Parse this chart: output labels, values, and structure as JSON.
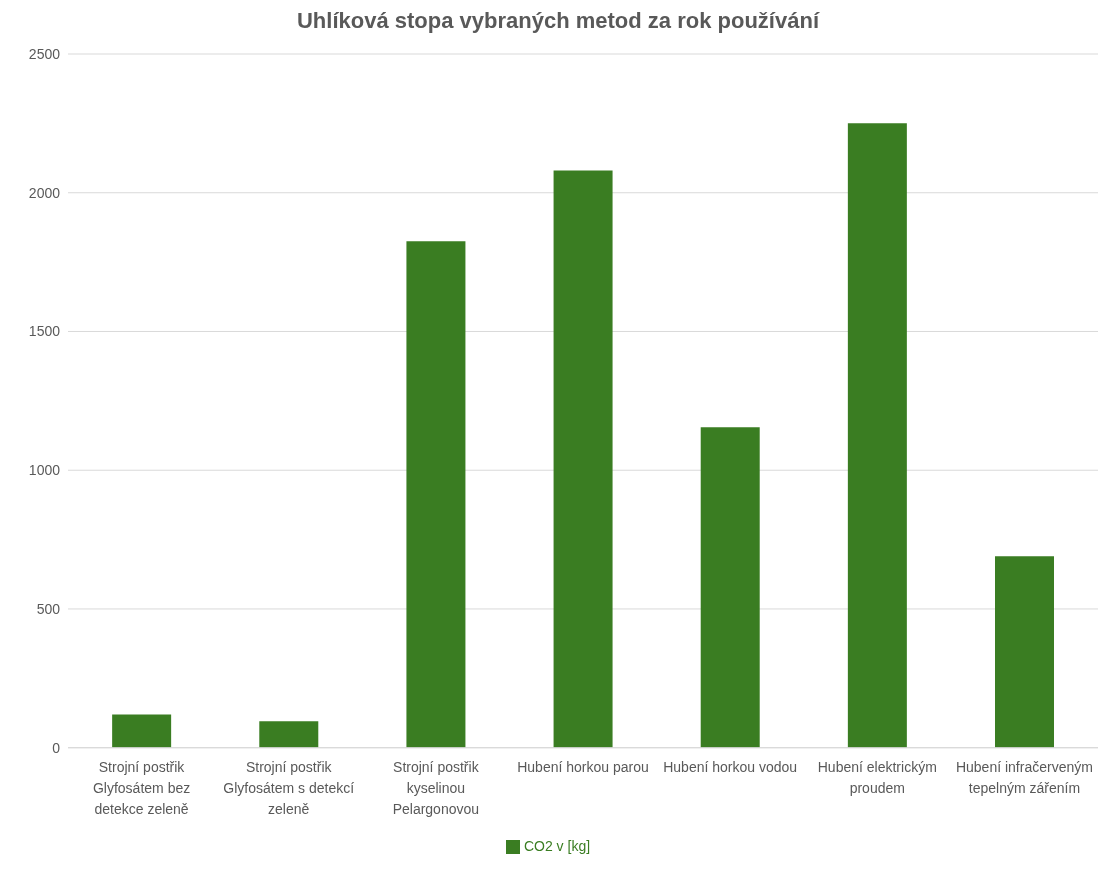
{
  "chart_data": {
    "type": "bar",
    "title": "Uhlíková stopa vybraných metod za rok používání",
    "categories": [
      "Strojní postřik Glyfosátem bez detekce zeleně",
      "Strojní postřik Glyfosátem s detekcí zeleně",
      "Strojní postřik kyselinou Pelargonovou",
      "Hubení horkou parou",
      "Hubení horkou vodou",
      "Hubení elektrickým proudem",
      "Hubení infračerveným tepelným zářením"
    ],
    "series": [
      {
        "name": "CO2 v [kg]",
        "color": "#3a7d22",
        "values": [
          120,
          95,
          1825,
          2080,
          1155,
          2250,
          690
        ]
      }
    ],
    "ylim": [
      0,
      2500
    ],
    "yticks": [
      0,
      500,
      1000,
      1500,
      2000,
      2500
    ],
    "grid": "y",
    "legend": "bottom"
  }
}
